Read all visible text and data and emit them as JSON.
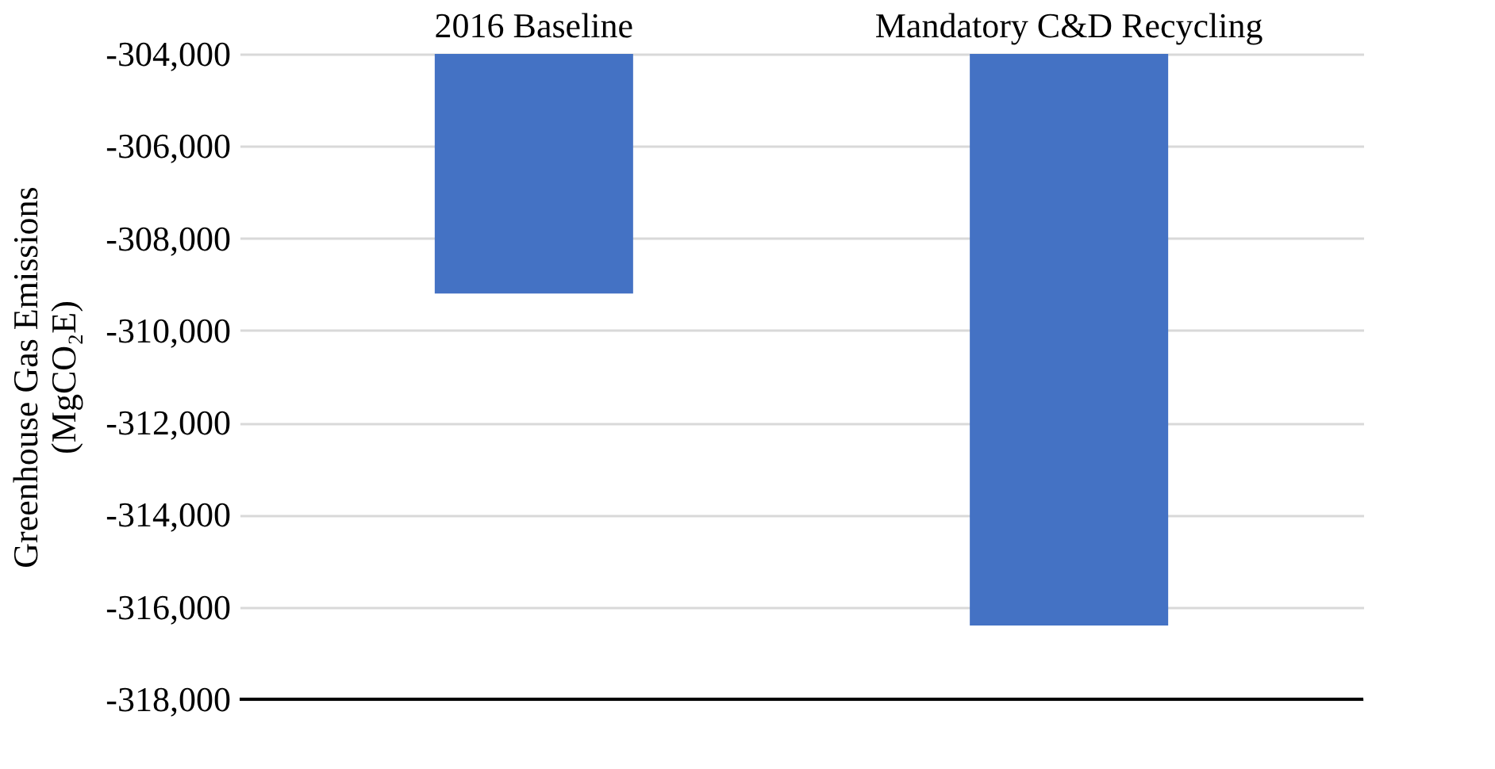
{
  "chart_data": {
    "type": "bar",
    "categories": [
      "2016 Baseline",
      "Mandatory C&D Recycling"
    ],
    "values": [
      -309200,
      -316400
    ],
    "color": "#4472c4",
    "ylabel": "Greenhouse Gas Emissions\n(MgCO₂E)",
    "ylim": [
      -318000,
      -304000
    ],
    "yticks": [
      {
        "value": -304000,
        "label": "-304,000"
      },
      {
        "value": -306000,
        "label": "-306,000"
      },
      {
        "value": -308000,
        "label": "-308,000"
      },
      {
        "value": -310000,
        "label": "-310,000"
      },
      {
        "value": -312000,
        "label": "-312,000"
      },
      {
        "value": -314000,
        "label": "-314,000"
      },
      {
        "value": -316000,
        "label": "-316,000"
      },
      {
        "value": -318000,
        "label": "-318,000"
      }
    ],
    "grid": "y"
  }
}
